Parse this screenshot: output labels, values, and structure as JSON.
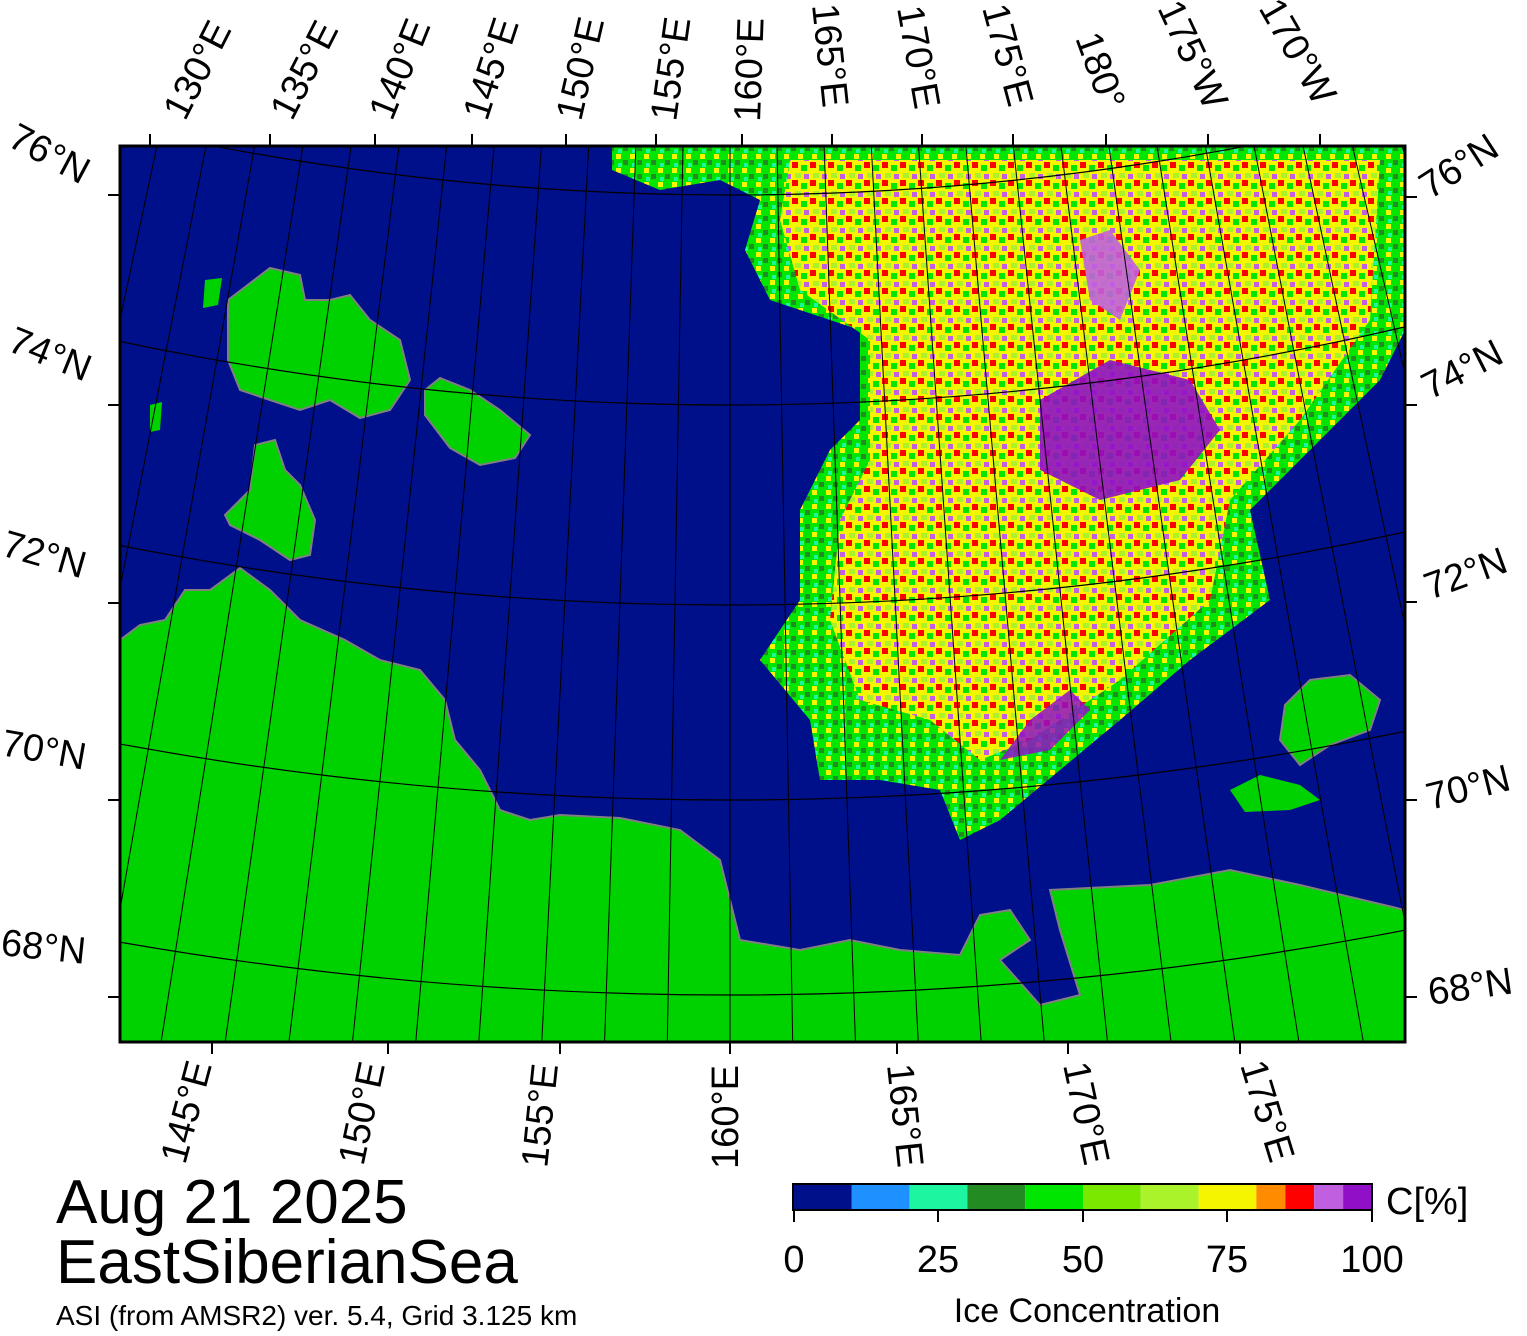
{
  "map": {
    "date": "Aug 21 2025",
    "region": "EastSiberianSea",
    "product": "ASI (from AMSR2) ver. 5.4,  Grid 3.125 km",
    "colors": {
      "ocean": "#000f8a",
      "land": "#00d200",
      "coast_shadow": "#808080",
      "frame": "#000000"
    },
    "labels": {
      "top": [
        "130°E",
        "135°E",
        "140°E",
        "145°E",
        "150°E",
        "155°E",
        "160°E",
        "165°E",
        "170°E",
        "175°E",
        "180°",
        "175°W",
        "170°W"
      ],
      "bottom": [
        "145°E",
        "150°E",
        "155°E",
        "160°E",
        "165°E",
        "170°E",
        "175°E"
      ],
      "left": [
        "76°N",
        "74°N",
        "72°N",
        "70°N",
        "68°N"
      ],
      "right": [
        "76°N",
        "74°N",
        "72°N",
        "70°N",
        "68°N"
      ]
    }
  },
  "colorbar": {
    "unit_label": "C[%]",
    "title": "Ice Concentration",
    "ticks": [
      "0",
      "25",
      "50",
      "75",
      "100"
    ],
    "colors": [
      "#000f8a",
      "#1e90ff",
      "#1ef5a0",
      "#228b22",
      "#00e600",
      "#7be800",
      "#aaf22a",
      "#f5f500",
      "#ff8c00",
      "#ff0000",
      "#c060e0",
      "#9010c8"
    ]
  }
}
